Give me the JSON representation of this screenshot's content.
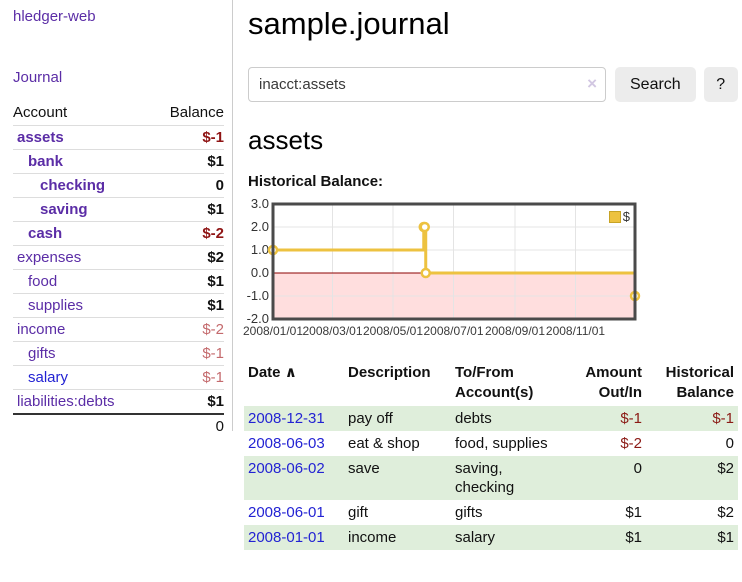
{
  "app": {
    "brand": "hledger-web",
    "nav_journal": "Journal"
  },
  "sidebar": {
    "header": {
      "account": "Account",
      "balance": "Balance"
    },
    "accounts": [
      {
        "name": "assets",
        "balance": "$-1"
      },
      {
        "name": "bank",
        "balance": "$1"
      },
      {
        "name": "checking",
        "balance": "0"
      },
      {
        "name": "saving",
        "balance": "$1"
      },
      {
        "name": "cash",
        "balance": "$-2"
      },
      {
        "name": "expenses",
        "balance": "$2"
      },
      {
        "name": "food",
        "balance": "$1"
      },
      {
        "name": "supplies",
        "balance": "$1"
      },
      {
        "name": "income",
        "balance": "$-2"
      },
      {
        "name": "gifts",
        "balance": "$-1"
      },
      {
        "name": "salary",
        "balance": "$-1"
      },
      {
        "name": "liabilities:debts",
        "balance": "$1"
      }
    ],
    "total": "0"
  },
  "main": {
    "title": "sample.journal",
    "search": {
      "value": "inacct:assets",
      "clear_icon": "×",
      "button": "Search",
      "help": "?"
    },
    "account_heading": "assets",
    "chart_label": "Historical Balance:"
  },
  "chart_data": {
    "type": "line",
    "title": "Historical Balance",
    "style": "step",
    "series": [
      {
        "name": "$",
        "color": "#edc240",
        "points": [
          [
            "2008-01-01",
            1
          ],
          [
            "2008-06-01",
            2
          ],
          [
            "2008-06-02",
            2
          ],
          [
            "2008-06-03",
            0
          ],
          [
            "2008-12-31",
            -1
          ]
        ]
      }
    ],
    "xrange": [
      "2008-01-01",
      "2008-12-31"
    ],
    "ylim": [
      -2,
      3
    ],
    "yticks": [
      3,
      2,
      1,
      0,
      -1,
      -2
    ],
    "ytick_labels": [
      "3.0",
      "2.0",
      "1.0",
      "0.0",
      "-1.0",
      "-2.0"
    ],
    "xticks": [
      {
        "date": "2008-01-01",
        "label": "2008/01/01"
      },
      {
        "date": "2008-03-01",
        "label": "2008/03/01"
      },
      {
        "date": "2008-05-01",
        "label": "2008/05/01"
      },
      {
        "date": "2008-07-01",
        "label": "2008/07/01"
      },
      {
        "date": "2008-09-01",
        "label": "2008/09/01"
      },
      {
        "date": "2008-11-01",
        "label": "2008/11/01"
      }
    ],
    "legend": {
      "label": "$",
      "position": "top-right"
    },
    "grid": true,
    "negative_region_fill": "#ffdede",
    "zero_line_color": "#8b0000"
  },
  "register": {
    "headers": {
      "date": "Date",
      "sort_icon": "∧",
      "description": "Description",
      "accounts": "To/From Account(s)",
      "amount": "Amount Out/In",
      "balance": "Historical Balance"
    },
    "rows": [
      {
        "date": "2008-12-31",
        "description": "pay off",
        "accounts": "debts",
        "amount": "$-1",
        "balance": "$-1"
      },
      {
        "date": "2008-06-03",
        "description": "eat & shop",
        "accounts": "food, supplies",
        "amount": "$-2",
        "balance": "0"
      },
      {
        "date": "2008-06-02",
        "description": "save",
        "accounts": "saving, checking",
        "amount": "0",
        "balance": "$2"
      },
      {
        "date": "2008-06-01",
        "description": "gift",
        "accounts": "gifts",
        "amount": "$1",
        "balance": "$2"
      },
      {
        "date": "2008-01-01",
        "description": "income",
        "accounts": "salary",
        "amount": "$1",
        "balance": "$1"
      }
    ]
  },
  "colors": {
    "link_purple": "#5b2da6",
    "link_blue": "#2323d3",
    "negative_strong": "#8f1414",
    "negative_muted": "#c46a6d",
    "row_stripe_green": "#dfeedb",
    "chart_line_gold": "#edc240",
    "negative_area_pink": "#ffdede",
    "zero_line_red": "#8b0000",
    "button_gray": "#ececec"
  }
}
